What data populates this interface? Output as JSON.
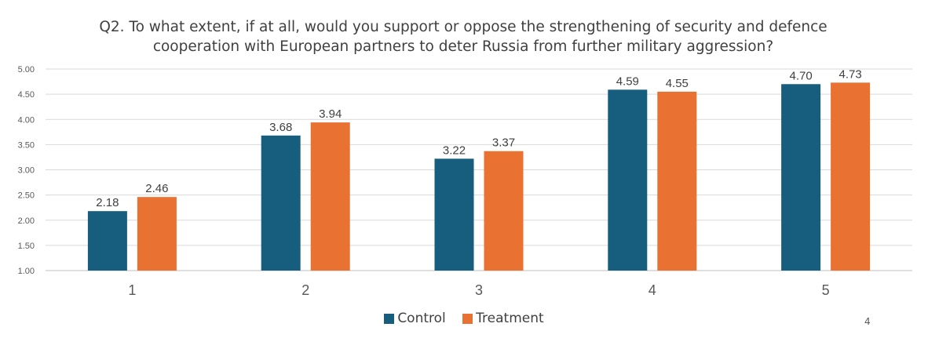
{
  "chart_data": {
    "type": "bar",
    "title_lines": [
      "Q2. To what extent, if at all, would you support or oppose the strengthening of security and defence",
      "cooperation with European partners to deter Russia from further military aggression?"
    ],
    "categories": [
      "1",
      "2",
      "3",
      "4",
      "5"
    ],
    "series": [
      {
        "name": "Control",
        "values": [
          2.18,
          3.68,
          3.22,
          4.59,
          4.7
        ],
        "color": "#175E7E"
      },
      {
        "name": "Treatment",
        "values": [
          2.46,
          3.94,
          3.37,
          4.55,
          4.73
        ],
        "color": "#E97132"
      }
    ],
    "ylim": [
      1.0,
      5.0
    ],
    "yticks": [
      "1.00",
      "1.50",
      "2.00",
      "2.50",
      "3.00",
      "3.50",
      "4.00",
      "4.50",
      "5.00"
    ],
    "value_labels": [
      [
        "2.18",
        "3.68",
        "3.22",
        "4.59",
        "4.70"
      ],
      [
        "2.46",
        "3.94",
        "3.37",
        "4.55",
        "4.73"
      ]
    ],
    "grid": true,
    "legend_position": "bottom-center"
  },
  "page_number": "4"
}
